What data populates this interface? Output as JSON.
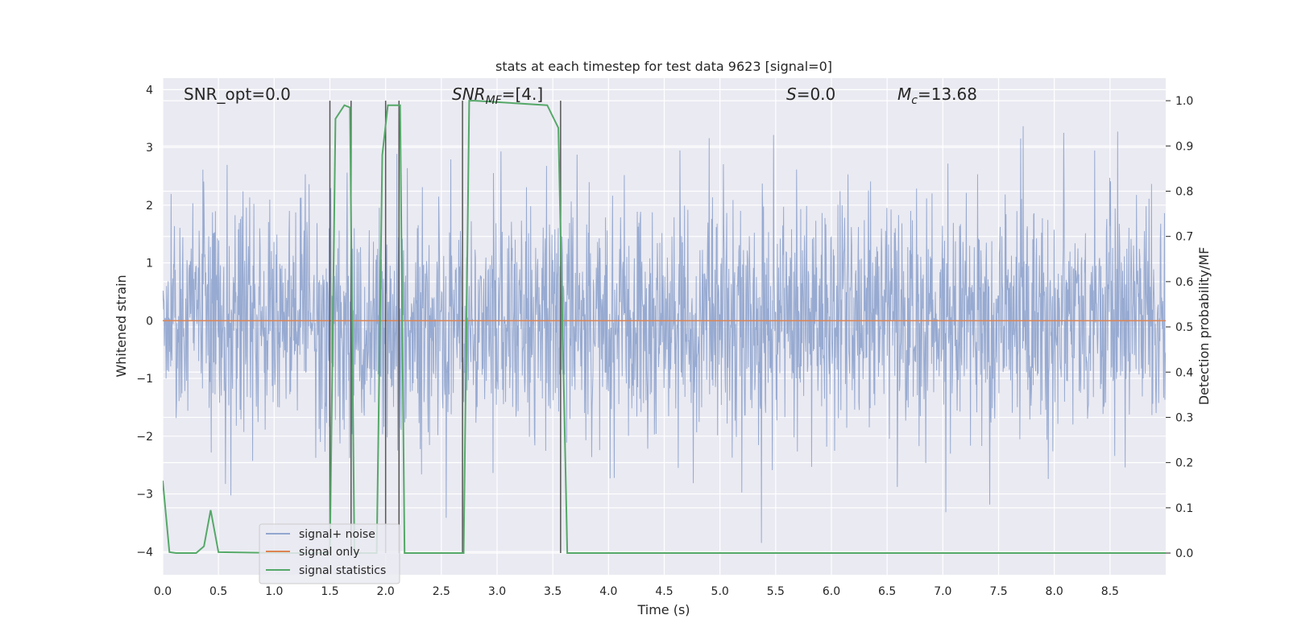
{
  "chart_data": {
    "type": "line",
    "title": "stats at each timestep for test data 9623 [signal=0]",
    "xlabel": "Time (s)",
    "ylabel": "Whitened strain",
    "y2label": "Detection probability/MF",
    "xlim": [
      0.0,
      9.0
    ],
    "ylim": [
      -4.4,
      4.2
    ],
    "y2lim": [
      -0.048,
      1.05
    ],
    "x_ticks": [
      "0.0",
      "0.5",
      "1.0",
      "1.5",
      "2.0",
      "2.5",
      "3.0",
      "3.5",
      "4.0",
      "4.5",
      "5.0",
      "5.5",
      "6.0",
      "6.5",
      "7.0",
      "7.5",
      "8.0",
      "8.5"
    ],
    "x_tick_values": [
      0.0,
      0.5,
      1.0,
      1.5,
      2.0,
      2.5,
      3.0,
      3.5,
      4.0,
      4.5,
      5.0,
      5.5,
      6.0,
      6.5,
      7.0,
      7.5,
      8.0,
      8.5
    ],
    "y_ticks": [
      "−4",
      "−3",
      "−2",
      "−1",
      "0",
      "1",
      "2",
      "3",
      "4"
    ],
    "y_tick_values": [
      -4,
      -3,
      -2,
      -1,
      0,
      1,
      2,
      3,
      4
    ],
    "y2_ticks": [
      "0.0",
      "0.1",
      "0.2",
      "0.3",
      "0.4",
      "0.5",
      "0.6",
      "0.7",
      "0.8",
      "0.9",
      "1.0"
    ],
    "y2_tick_values": [
      0.0,
      0.1,
      0.2,
      0.3,
      0.4,
      0.5,
      0.6,
      0.7,
      0.8,
      0.9,
      1.0
    ],
    "grid": true,
    "legend_position": "lower-left",
    "annotations": {
      "snr_opt": "SNR_opt=0.0",
      "snr_mf_main": "SNR",
      "snr_mf_sub": "MF",
      "snr_mf_value": "=[4.]",
      "s_symbol": "S",
      "s_value": "=0.0",
      "mc_symbol": "M",
      "mc_sub": "c",
      "mc_value": "=13.68"
    },
    "series": [
      {
        "name": "signal+ noise",
        "color": "#92a6cf",
        "axis": "left",
        "style": "dense noise, amplitude mostly within ±2, peaks to about ±3.8",
        "sample_count": 2400,
        "rms": 1.0
      },
      {
        "name": "signal only",
        "color": "#dd8452",
        "axis": "left",
        "x": [
          0.0,
          9.0
        ],
        "y": [
          0.0,
          0.0
        ]
      },
      {
        "name": "signal statistics",
        "color": "#55a868",
        "axis": "right",
        "x": [
          0.0,
          0.06,
          0.12,
          0.3,
          0.37,
          0.43,
          0.5,
          1.1,
          1.5,
          1.55,
          1.63,
          1.68,
          1.72,
          1.76,
          1.85,
          1.92,
          1.97,
          2.02,
          2.07,
          2.13,
          2.17,
          2.25,
          2.65,
          2.7,
          2.75,
          2.8,
          3.45,
          3.55,
          3.63,
          3.7,
          9.0
        ],
        "y": [
          0.16,
          0.002,
          0.0,
          0.0,
          0.015,
          0.095,
          0.002,
          0.0,
          0.0,
          0.96,
          0.99,
          0.985,
          0.0,
          0.0,
          0.0,
          0.0,
          0.88,
          0.99,
          0.99,
          0.99,
          0.0,
          0.0,
          0.0,
          0.0,
          1.0,
          1.0,
          0.99,
          0.94,
          0.0,
          0.0,
          0.0
        ]
      }
    ],
    "event_markers": {
      "color": "#555555",
      "x": [
        1.5,
        1.69,
        2.0,
        2.12,
        2.69,
        3.57
      ],
      "y2_range": [
        0.0,
        1.0
      ]
    }
  }
}
